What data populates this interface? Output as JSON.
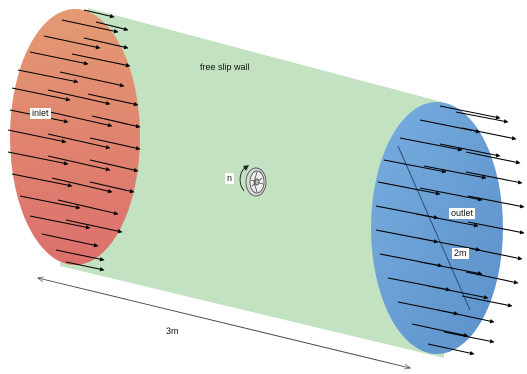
{
  "labels": {
    "wall": "free slip wall",
    "inlet": "inlet",
    "outlet": "outlet",
    "rotation": "n",
    "diameter": "2m",
    "length": "3m"
  },
  "colors": {
    "wall_fill": "#c2e2c1",
    "inlet_top": "#e49a73",
    "inlet_bottom": "#dc6f6c",
    "outlet_fill": "#6fa6dc",
    "outlet_dark": "#5d93cc",
    "arrow": "#000000",
    "dimension": "#444444"
  },
  "icons": [
    "fan-icon",
    "rotation-arrow-icon"
  ]
}
